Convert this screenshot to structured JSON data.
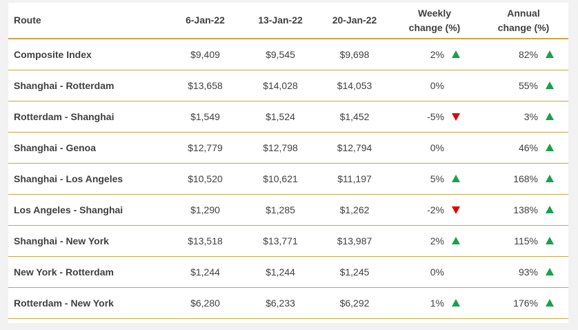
{
  "chart_data": {
    "type": "table",
    "columns": [
      "Route",
      "6-Jan-22",
      "13-Jan-22",
      "20-Jan-22",
      "Weekly change (%)",
      "Annual change (%)"
    ],
    "header_lines": {
      "weekly": [
        "Weekly",
        "change (%)"
      ],
      "annual": [
        "Annual",
        "change (%)"
      ]
    },
    "rows": [
      {
        "route": "Composite Index",
        "d1": "$9,409",
        "d2": "$9,545",
        "d3": "$9,698",
        "weekly": "2%",
        "weekly_dir": "up",
        "annual": "82%",
        "annual_dir": "up"
      },
      {
        "route": "Shanghai - Rotterdam",
        "d1": "$13,658",
        "d2": "$14,028",
        "d3": "$14,053",
        "weekly": "0%",
        "weekly_dir": "none",
        "annual": "55%",
        "annual_dir": "up"
      },
      {
        "route": "Rotterdam - Shanghai",
        "d1": "$1,549",
        "d2": "$1,524",
        "d3": "$1,452",
        "weekly": "-5%",
        "weekly_dir": "down",
        "annual": "3%",
        "annual_dir": "up"
      },
      {
        "route": "Shanghai - Genoa",
        "d1": "$12,779",
        "d2": "$12,798",
        "d3": "$12,794",
        "weekly": "0%",
        "weekly_dir": "none",
        "annual": "46%",
        "annual_dir": "up"
      },
      {
        "route": "Shanghai - Los Angeles",
        "d1": "$10,520",
        "d2": "$10,621",
        "d3": "$11,197",
        "weekly": "5%",
        "weekly_dir": "up",
        "annual": "168%",
        "annual_dir": "up"
      },
      {
        "route": "Los Angeles - Shanghai",
        "d1": "$1,290",
        "d2": "$1,285",
        "d3": "$1,262",
        "weekly": "-2%",
        "weekly_dir": "down",
        "annual": "138%",
        "annual_dir": "up"
      },
      {
        "route": "Shanghai - New York",
        "d1": "$13,518",
        "d2": "$13,771",
        "d3": "$13,987",
        "weekly": "2%",
        "weekly_dir": "up",
        "annual": "115%",
        "annual_dir": "up"
      },
      {
        "route": "New York - Rotterdam",
        "d1": "$1,244",
        "d2": "$1,244",
        "d3": "$1,245",
        "weekly": "0%",
        "weekly_dir": "none",
        "annual": "93%",
        "annual_dir": "up"
      },
      {
        "route": "Rotterdam - New York",
        "d1": "$6,280",
        "d2": "$6,233",
        "d3": "$6,292",
        "weekly": "1%",
        "weekly_dir": "up",
        "annual": "176%",
        "annual_dir": "up"
      }
    ]
  },
  "colors": {
    "rule": "#c7a645",
    "up": "#16a34a",
    "down": "#e00000",
    "text": "#404040"
  }
}
